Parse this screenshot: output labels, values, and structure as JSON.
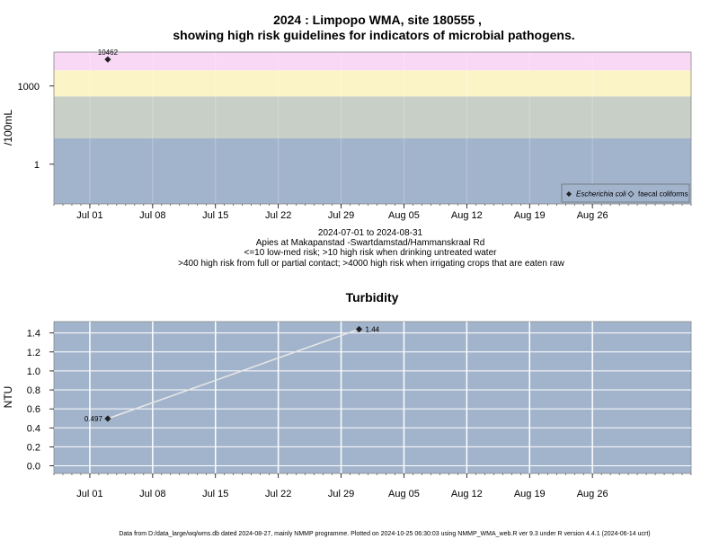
{
  "page": {
    "footer": "Data from D:/data_large/wq/wms.db dated 2024-08-27, mainly NMMP programme. Plotted on 2024-10-25 06:30:03 using NMMP_WMA_web.R ver 9.3 under R version 4.4.1 (2024-06-14 ucrt)"
  },
  "chart_data": [
    {
      "type": "scatter",
      "title_line1": "2024 : Limpopo WMA, site 180555 ,",
      "title_line2": "showing high risk guidelines for indicators of microbial pathogens.",
      "ylabel": "/100mL",
      "yscale": "log",
      "xlim": [
        "2024-06-27",
        "2024-09-06"
      ],
      "ylim": [
        0.03,
        20000
      ],
      "yticks": [
        1,
        1000
      ],
      "ytick_labels": [
        "1",
        "1000"
      ],
      "xticks": [
        "2024-07-01",
        "2024-07-08",
        "2024-07-15",
        "2024-07-22",
        "2024-07-29",
        "2024-08-05",
        "2024-08-12",
        "2024-08-19",
        "2024-08-26"
      ],
      "xtick_labels": [
        "Jul 01",
        "Jul 08",
        "Jul 15",
        "Jul 22",
        "Jul 29",
        "Aug 05",
        "Aug 12",
        "Aug 19",
        "Aug 26"
      ],
      "risk_bands": [
        {
          "from": 0.03,
          "to": 10,
          "color": "#a2b4cc"
        },
        {
          "from": 10,
          "to": 400,
          "color": "#c7cfc7"
        },
        {
          "from": 400,
          "to": 4000,
          "color": "#fbf4c7"
        },
        {
          "from": 4000,
          "to": 20000,
          "color": "#f8d8f5"
        }
      ],
      "series": [
        {
          "name": "Escherichia coli",
          "marker": "filled-diamond",
          "points": [
            {
              "x": "2024-07-03",
              "y": 10462,
              "label": "10462"
            }
          ]
        },
        {
          "name": "faecal coliforms",
          "marker": "open-diamond",
          "points": []
        }
      ],
      "legend_position": "bottom-right",
      "subtitle_lines": [
        "2024-07-01 to 2024-08-31",
        "Apies at Makapanstad -Swartdamstad/Hammanskraal Rd",
        "<=10 low-med risk; >10 high risk when drinking untreated water",
        ">400 high risk from full or partial contact; >4000 high risk when irrigating crops that are eaten raw"
      ]
    },
    {
      "type": "line",
      "title": "Turbidity",
      "ylabel": "NTU",
      "xlim": [
        "2024-06-27",
        "2024-09-06"
      ],
      "ylim": [
        -0.08,
        1.52
      ],
      "yticks": [
        0.0,
        0.2,
        0.4,
        0.6,
        0.8,
        1.0,
        1.2,
        1.4
      ],
      "ytick_labels": [
        "0.0",
        "0.2",
        "0.4",
        "0.6",
        "0.8",
        "1.0",
        "1.2",
        "1.4"
      ],
      "xticks": [
        "2024-07-01",
        "2024-07-08",
        "2024-07-15",
        "2024-07-22",
        "2024-07-29",
        "2024-08-05",
        "2024-08-12",
        "2024-08-19",
        "2024-08-26"
      ],
      "xtick_labels": [
        "Jul 01",
        "Jul 08",
        "Jul 15",
        "Jul 22",
        "Jul 29",
        "Aug 05",
        "Aug 12",
        "Aug 19",
        "Aug 26"
      ],
      "background": "#a2b4cc",
      "grid": true,
      "points": [
        {
          "x": "2024-07-03",
          "y": 0.497,
          "label": "0.497"
        },
        {
          "x": "2024-07-31",
          "y": 1.44,
          "label": "1.44"
        }
      ]
    }
  ]
}
